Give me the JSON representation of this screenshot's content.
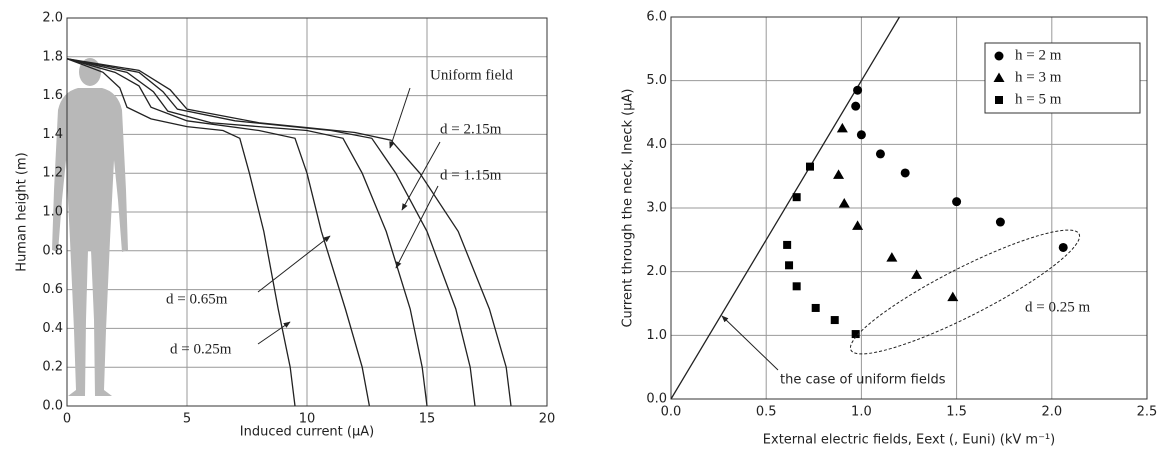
{
  "chart_data": [
    {
      "type": "line",
      "x_label": "Induced current (μA)",
      "y_label": "Human height (m)",
      "xlim": [
        0,
        20
      ],
      "xticks": [
        0,
        5,
        10,
        15,
        20
      ],
      "ylim": [
        0,
        2.0
      ],
      "yticks": [
        {
          "value": 0,
          "label": "0.0"
        },
        0.2,
        0.4,
        0.6,
        0.8,
        {
          "value": 1,
          "label": "1.0"
        },
        1.2,
        1.4,
        1.6,
        1.8,
        {
          "value": 2,
          "label": "2.0"
        }
      ],
      "grid": true,
      "series": [
        {
          "name": "d = 0.25m",
          "color": "#222222",
          "x": [
            0,
            1.5,
            2.2,
            2.5,
            3.5,
            5,
            6.5,
            7.2,
            7.6,
            8.2,
            8.8,
            9.3,
            9.5
          ],
          "values": [
            1.79,
            1.72,
            1.64,
            1.54,
            1.48,
            1.44,
            1.42,
            1.38,
            1.2,
            0.9,
            0.5,
            0.2,
            0
          ]
        },
        {
          "name": "d = 0.65m",
          "color": "#222222",
          "x": [
            0,
            2,
            3,
            3.5,
            5,
            8,
            9.5,
            10,
            10.6,
            11.6,
            12.3,
            12.6
          ],
          "values": [
            1.79,
            1.72,
            1.65,
            1.54,
            1.47,
            1.42,
            1.38,
            1.2,
            0.9,
            0.5,
            0.2,
            0
          ]
        },
        {
          "name": "d = 1.15m",
          "color": "#222222",
          "x": [
            0,
            2.5,
            3.6,
            4.2,
            6,
            10,
            11.5,
            12.3,
            13.3,
            14.3,
            14.8,
            15
          ],
          "values": [
            1.79,
            1.72,
            1.62,
            1.52,
            1.46,
            1.42,
            1.38,
            1.2,
            0.9,
            0.5,
            0.2,
            0
          ]
        },
        {
          "name": "d = 2.15m",
          "color": "#222222",
          "x": [
            0,
            3,
            4,
            4.6,
            7,
            11,
            12.7,
            13.7,
            15,
            16.2,
            16.8,
            17
          ],
          "values": [
            1.79,
            1.72,
            1.62,
            1.53,
            1.47,
            1.42,
            1.38,
            1.2,
            0.9,
            0.5,
            0.2,
            0
          ]
        },
        {
          "name": "Uniform field",
          "color": "#222222",
          "x": [
            0,
            3,
            4.3,
            5,
            8,
            12,
            13.5,
            14.7,
            16.3,
            17.6,
            18.3,
            18.5
          ],
          "values": [
            1.79,
            1.73,
            1.63,
            1.53,
            1.46,
            1.41,
            1.37,
            1.2,
            0.9,
            0.5,
            0.2,
            0
          ]
        }
      ]
    },
    {
      "type": "scatter",
      "x_label": "External electric fields, Eext (, Euni) (kV m⁻¹)",
      "y_label": "Current through the neck, Ineck (μA)",
      "xlim": [
        0,
        2.5
      ],
      "xticks": [
        {
          "value": 0,
          "label": "0.0"
        },
        0.5,
        {
          "value": 1,
          "label": "1.0"
        },
        1.5,
        {
          "value": 2,
          "label": "2.0"
        },
        2.5
      ],
      "ylim": [
        0,
        6.0
      ],
      "yticks": [
        {
          "value": 0,
          "label": "0.0"
        },
        {
          "value": 1,
          "label": "1.0"
        },
        {
          "value": 2,
          "label": "2.0"
        },
        {
          "value": 3,
          "label": "3.0"
        },
        {
          "value": 4,
          "label": "4.0"
        },
        {
          "value": 5,
          "label": "5.0"
        },
        {
          "value": 6,
          "label": "6.0"
        }
      ],
      "grid": true,
      "legend": "upper right",
      "series": [
        {
          "name": "h = 2 m",
          "marker": "circle",
          "color": "#000000",
          "x": [
            0.98,
            0.97,
            1.0,
            1.1,
            1.23,
            1.5,
            1.73,
            2.06
          ],
          "values": [
            4.85,
            4.6,
            4.15,
            3.85,
            3.55,
            3.1,
            2.78,
            2.38
          ]
        },
        {
          "name": "h = 3 m",
          "marker": "triangle",
          "color": "#000000",
          "x": [
            0.9,
            0.88,
            0.91,
            0.98,
            1.16,
            1.29,
            1.48
          ],
          "values": [
            4.25,
            3.52,
            3.07,
            2.72,
            2.22,
            1.95,
            1.6
          ]
        },
        {
          "name": "h = 5 m",
          "marker": "square",
          "color": "#000000",
          "x": [
            0.73,
            0.66,
            0.61,
            0.62,
            0.66,
            0.76,
            0.86,
            0.97
          ],
          "values": [
            3.65,
            3.17,
            2.42,
            2.1,
            1.77,
            1.43,
            1.24,
            1.02
          ]
        }
      ],
      "reference_line": {
        "name": "the case of uniform fields",
        "color": "#222222",
        "x": [
          0,
          1.2
        ],
        "values": [
          0,
          6.0
        ]
      },
      "annotation": "d = 0.25 m"
    }
  ]
}
